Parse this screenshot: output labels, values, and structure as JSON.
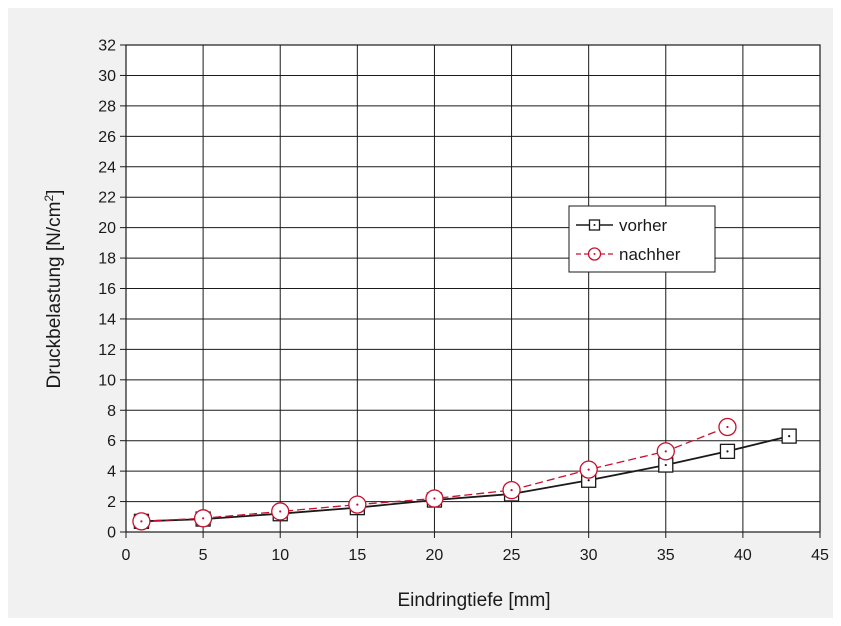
{
  "chart_data": {
    "type": "line",
    "xlabel": "Eindringtiefe [mm]",
    "ylabel_main": "Druckbelastung [N/cm",
    "ylabel_sup": "2",
    "ylabel_close": "]",
    "xlim": [
      0,
      45
    ],
    "ylim": [
      0,
      32
    ],
    "x_ticks": [
      "0",
      "5",
      "10",
      "15",
      "20",
      "25",
      "30",
      "35",
      "40",
      "45"
    ],
    "y_ticks": [
      "0",
      "2",
      "4",
      "6",
      "8",
      "10",
      "12",
      "14",
      "16",
      "18",
      "20",
      "22",
      "24",
      "26",
      "28",
      "30",
      "32"
    ],
    "grid": true,
    "legend_position": "right",
    "series": [
      {
        "name": "vorher",
        "color": "#1a1a1a",
        "marker": "square",
        "line_style": "solid",
        "x": [
          1,
          5,
          10,
          15,
          20,
          25,
          30,
          35,
          39,
          43
        ],
        "y": [
          0.7,
          0.85,
          1.2,
          1.6,
          2.1,
          2.5,
          3.4,
          4.4,
          5.3,
          6.3
        ]
      },
      {
        "name": "nachher",
        "color": "#c8102e",
        "marker": "circle",
        "line_style": "dashed",
        "x": [
          1,
          5,
          10,
          15,
          20,
          25,
          30,
          35,
          39
        ],
        "y": [
          0.7,
          0.9,
          1.35,
          1.8,
          2.2,
          2.75,
          4.1,
          5.3,
          6.9
        ]
      }
    ]
  }
}
